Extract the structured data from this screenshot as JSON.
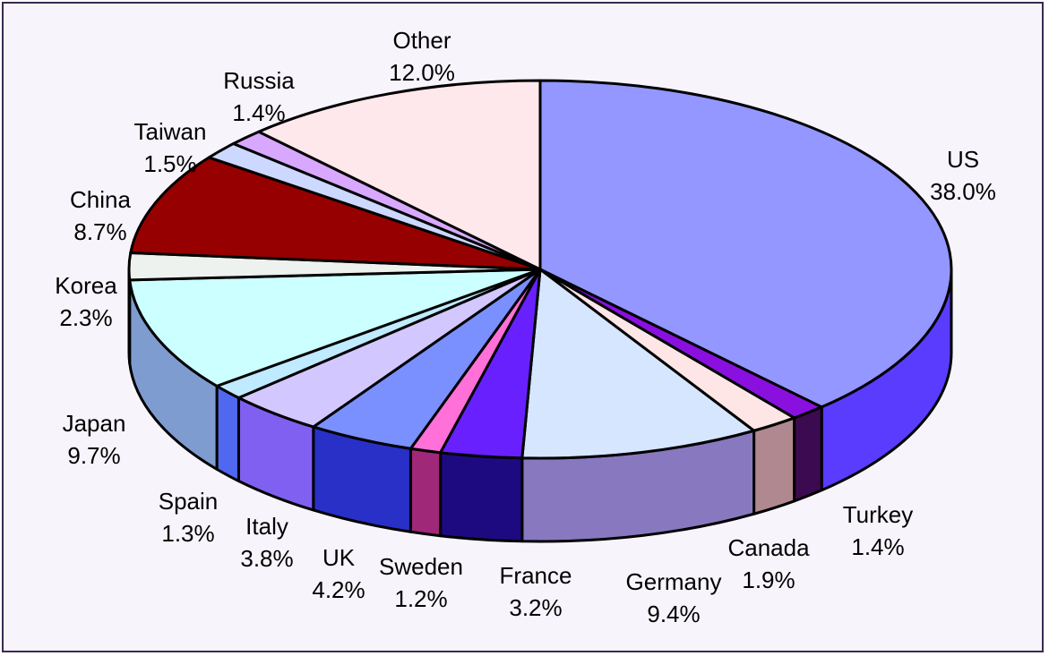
{
  "chart_data": {
    "type": "pie",
    "title": "",
    "three_d": true,
    "start_angle": "12 o'clock",
    "direction": "clockwise",
    "slices": [
      {
        "label": "US",
        "value": 38.0,
        "display": "38.0%",
        "color": "#9397ff",
        "side_color": "#5a3cff"
      },
      {
        "label": "Turkey",
        "value": 1.4,
        "display": "1.4%",
        "color": "#8a10e0",
        "side_color": "#3c0a50"
      },
      {
        "label": "Canada",
        "value": 1.9,
        "display": "1.9%",
        "color": "#ffe6e6",
        "side_color": "#b08890"
      },
      {
        "label": "Germany",
        "value": 9.4,
        "display": "9.4%",
        "color": "#d6e6ff",
        "side_color": "#8878c0"
      },
      {
        "label": "France",
        "value": 3.2,
        "display": "3.2%",
        "color": "#6820ff",
        "side_color": "#1e0a80"
      },
      {
        "label": "Sweden",
        "value": 1.2,
        "display": "1.2%",
        "color": "#ff70d8",
        "side_color": "#a02878"
      },
      {
        "label": "UK",
        "value": 4.2,
        "display": "4.2%",
        "color": "#7a90ff",
        "side_color": "#2830c8"
      },
      {
        "label": "Italy",
        "value": 3.8,
        "display": "3.8%",
        "color": "#d2c8ff",
        "side_color": "#8060f0"
      },
      {
        "label": "Spain",
        "value": 1.3,
        "display": "1.3%",
        "color": "#bfeaff",
        "side_color": "#5068f0"
      },
      {
        "label": "Japan",
        "value": 9.7,
        "display": "9.7%",
        "color": "#ccffff",
        "side_color": "#7f9cd0"
      },
      {
        "label": "Korea",
        "value": 2.3,
        "display": "2.3%",
        "color": "#eef2ee",
        "side_color": "#7f9cd0"
      },
      {
        "label": "China",
        "value": 8.7,
        "display": "8.7%",
        "color": "#960000",
        "side_color": "#600000"
      },
      {
        "label": "Taiwan",
        "value": 1.5,
        "display": "1.5%",
        "color": "#ccd8ff",
        "side_color": "#8090c0"
      },
      {
        "label": "Russia",
        "value": 1.4,
        "display": "1.4%",
        "color": "#d8a8ff",
        "side_color": "#9060c0"
      },
      {
        "label": "Other",
        "value": 12.0,
        "display": "12.0%",
        "color": "#ffe8ec",
        "side_color": "#c0a0a8"
      }
    ]
  }
}
